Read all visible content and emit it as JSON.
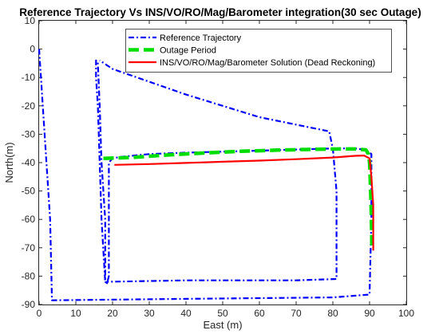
{
  "chart_data": {
    "type": "line",
    "title": "Reference Trajectory Vs INS/VO/RO/Mag/Barometer integration(30 sec Outage)",
    "xlabel": "East (m)",
    "ylabel": "North(m)",
    "xlim": [
      0,
      100
    ],
    "ylim": [
      -90,
      10
    ],
    "xticks": [
      0,
      10,
      20,
      30,
      40,
      50,
      60,
      70,
      80,
      90,
      100
    ],
    "yticks": [
      10,
      0,
      -10,
      -20,
      -30,
      -40,
      -50,
      -60,
      -70,
      -80,
      -90
    ],
    "grid": false,
    "legend_position": "top-right",
    "series": [
      {
        "name": "Reference Trajectory",
        "color": "#0000ff",
        "style": "dash-dot",
        "x": [
          0,
          1,
          2,
          3,
          3.5,
          40,
          80,
          90,
          90.5,
          90.5,
          90.5,
          89,
          86,
          80,
          60,
          40,
          30,
          22,
          20,
          19,
          19,
          19,
          19,
          18.5,
          18,
          17,
          16.5,
          16,
          15.5,
          15.5,
          15.5,
          16,
          16,
          16.5,
          17,
          18,
          18,
          18.5,
          18.5,
          40,
          70,
          81,
          81,
          81,
          80,
          79,
          60,
          40,
          20,
          16.5
        ],
        "y": [
          0,
          -20,
          -40,
          -60,
          -88.5,
          -88,
          -87.5,
          -86.5,
          -60,
          -40,
          -37,
          -35.5,
          -35,
          -35,
          -35.8,
          -36.5,
          -37,
          -38,
          -38.5,
          -40,
          -50,
          -60,
          -80,
          -82.5,
          -82,
          -60,
          -40,
          -20,
          -10,
          -5,
          -4,
          -4.5,
          -5,
          -20,
          -40,
          -60,
          -82,
          -82.5,
          -82,
          -81.5,
          -81.5,
          -81,
          -70,
          -50,
          -35,
          -29,
          -24,
          -16,
          -7,
          -4
        ]
      },
      {
        "name": "Outage Period",
        "color": "#00dd00",
        "style": "dashed",
        "x": [
          17.5,
          25,
          35,
          45,
          55,
          65,
          75,
          82,
          86,
          89,
          89.7,
          90,
          90.3,
          90.5,
          90.6,
          90.6
        ],
        "y": [
          -38.5,
          -38.2,
          -37.3,
          -36.6,
          -36.0,
          -35.6,
          -35.3,
          -35.2,
          -35.2,
          -35.5,
          -37,
          -40,
          -50,
          -60,
          -67,
          -70
        ]
      },
      {
        "name": "INS/VO/RO/Mag/Barometer Solution (Dead Reckoning)",
        "color": "#ff0000",
        "style": "solid",
        "x": [
          20.5,
          30,
          40,
          50,
          60,
          70,
          80,
          86,
          88.5,
          90,
          90.5,
          91,
          91,
          91
        ],
        "y": [
          -40.8,
          -40.5,
          -40.1,
          -39.7,
          -39.3,
          -38.8,
          -38.2,
          -37.6,
          -37.5,
          -38.5,
          -45,
          -55,
          -65,
          -71
        ]
      }
    ]
  }
}
